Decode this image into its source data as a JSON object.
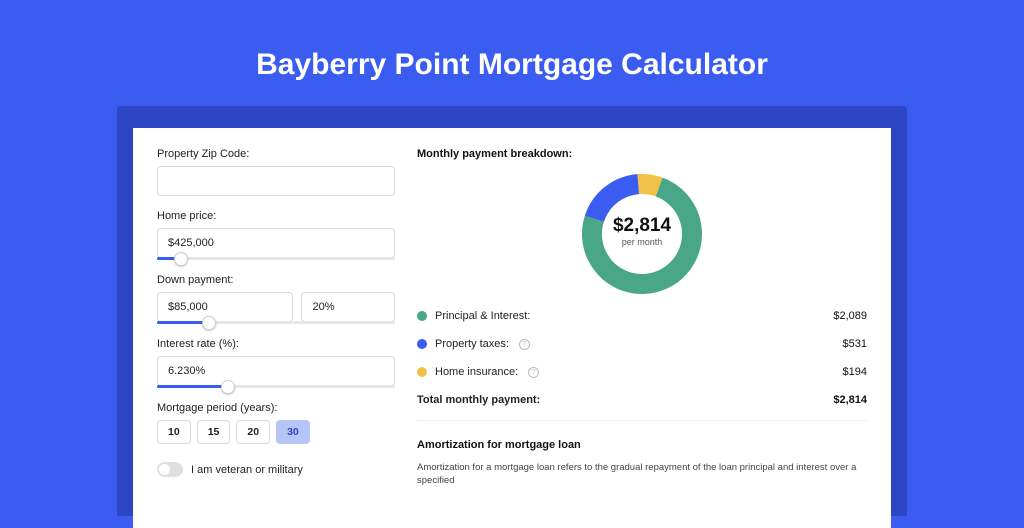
{
  "page": {
    "title": "Bayberry Point Mortgage Calculator",
    "background_color": "#3a5cf0",
    "panel_color": "#2d46c3"
  },
  "form": {
    "zip": {
      "label": "Property Zip Code:",
      "value": ""
    },
    "home_price": {
      "label": "Home price:",
      "value": "$425,000",
      "slider_pct": 10
    },
    "down_payment": {
      "label": "Down payment:",
      "amount": "$85,000",
      "percent": "20%",
      "slider_pct": 22
    },
    "interest": {
      "label": "Interest rate (%):",
      "value": "6.230%",
      "slider_pct": 30
    },
    "period": {
      "label": "Mortgage period (years):",
      "options": [
        "10",
        "15",
        "20",
        "30"
      ],
      "selected_index": 3
    },
    "veteran": {
      "label": "I am veteran or military",
      "checked": false
    }
  },
  "breakdown": {
    "title": "Monthly payment breakdown:",
    "center_value": "$2,814",
    "center_sub": "per month",
    "donut": {
      "size": 120,
      "stroke": 20,
      "slices": [
        {
          "key": "principal",
          "value": 2089,
          "color": "#49a788"
        },
        {
          "key": "taxes",
          "value": 531,
          "color": "#3a5cf0"
        },
        {
          "key": "insurance",
          "value": 194,
          "color": "#f0c248"
        }
      ]
    },
    "legend": {
      "items": [
        {
          "label": "Principal & Interest:",
          "value": "$2,089",
          "color": "#49a788",
          "info": false
        },
        {
          "label": "Property taxes:",
          "value": "$531",
          "color": "#3a5cf0",
          "info": true
        },
        {
          "label": "Home insurance:",
          "value": "$194",
          "color": "#f0c248",
          "info": true
        }
      ],
      "total": {
        "label": "Total monthly payment:",
        "value": "$2,814"
      }
    }
  },
  "amortization": {
    "title": "Amortization for mortgage loan",
    "text": "Amortization for a mortgage loan refers to the gradual repayment of the loan principal and interest over a specified"
  }
}
